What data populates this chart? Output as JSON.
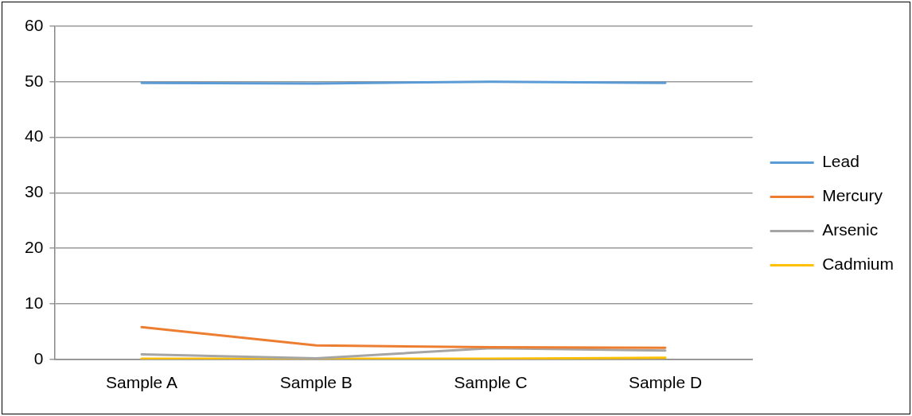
{
  "chart_data": {
    "type": "line",
    "categories": [
      "Sample A",
      "Sample B",
      "Sample C",
      "Sample D"
    ],
    "series": [
      {
        "name": "Lead",
        "color": "#5b9bd5",
        "values": [
          49.8,
          49.7,
          50,
          49.8
        ]
      },
      {
        "name": "Mercury",
        "color": "#ed7d31",
        "values": [
          5.8,
          2.5,
          2.2,
          2.1
        ]
      },
      {
        "name": "Arsenic",
        "color": "#a5a5a5",
        "values": [
          0.9,
          0.2,
          2,
          1.6
        ]
      },
      {
        "name": "Cadmium",
        "color": "#ffc000",
        "values": [
          0.1,
          0.1,
          0.1,
          0.3
        ]
      }
    ],
    "ylim": [
      0,
      60
    ],
    "yticks": [
      0,
      10,
      20,
      30,
      40,
      50,
      60
    ],
    "grid": "y",
    "legend": "right",
    "marker": "none",
    "line_style": "solid"
  }
}
